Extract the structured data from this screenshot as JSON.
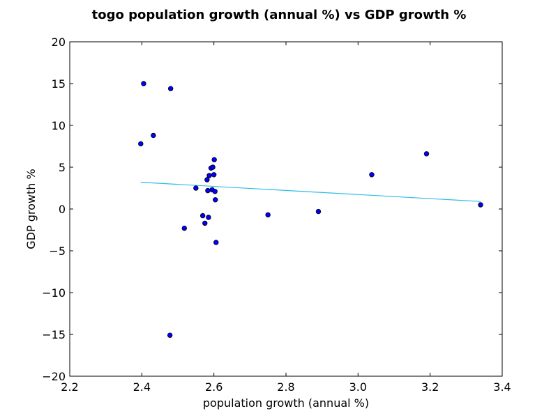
{
  "chart_data": {
    "type": "scatter",
    "title": "togo population growth (annual %) vs GDP growth %",
    "xlabel": "population growth (annual %)",
    "ylabel": "GDP growth %",
    "xlim": [
      2.2,
      3.4
    ],
    "ylim": [
      -20,
      20
    ],
    "x_ticks": [
      2.2,
      2.4,
      2.6,
      2.8,
      3.0,
      3.2,
      3.4
    ],
    "x_tick_labels": [
      "2.2",
      "2.4",
      "2.6",
      "2.8",
      "3.0",
      "3.2",
      "3.4"
    ],
    "y_ticks": [
      -20,
      -15,
      -10,
      -5,
      0,
      5,
      10,
      15,
      20
    ],
    "y_tick_labels": [
      "−20",
      "−15",
      "−10",
      "−5",
      "0",
      "5",
      "10",
      "15",
      "20"
    ],
    "grid": false,
    "point_color": "#0000ff",
    "trendline_color": "#2bbde6",
    "points": [
      {
        "x": 2.405,
        "y": 15.0
      },
      {
        "x": 2.48,
        "y": 14.4
      },
      {
        "x": 2.432,
        "y": 8.8
      },
      {
        "x": 2.397,
        "y": 7.8
      },
      {
        "x": 2.478,
        "y": -15.1
      },
      {
        "x": 2.518,
        "y": -2.3
      },
      {
        "x": 2.55,
        "y": 2.5
      },
      {
        "x": 2.569,
        "y": -0.8
      },
      {
        "x": 2.575,
        "y": -1.7
      },
      {
        "x": 2.581,
        "y": 3.5
      },
      {
        "x": 2.583,
        "y": 2.2
      },
      {
        "x": 2.585,
        "y": -1.0
      },
      {
        "x": 2.587,
        "y": 4.0
      },
      {
        "x": 2.592,
        "y": 4.9
      },
      {
        "x": 2.595,
        "y": 2.3
      },
      {
        "x": 2.597,
        "y": 5.0
      },
      {
        "x": 2.6,
        "y": 4.1
      },
      {
        "x": 2.601,
        "y": 5.9
      },
      {
        "x": 2.603,
        "y": 2.1
      },
      {
        "x": 2.604,
        "y": 1.1
      },
      {
        "x": 2.606,
        "y": -4.0
      },
      {
        "x": 2.75,
        "y": -0.7
      },
      {
        "x": 2.89,
        "y": -0.3
      },
      {
        "x": 3.038,
        "y": 4.1
      },
      {
        "x": 3.19,
        "y": 6.6
      },
      {
        "x": 3.34,
        "y": 0.5
      }
    ],
    "trendline": {
      "x": [
        2.397,
        3.34
      ],
      "y": [
        3.2,
        0.9
      ]
    }
  }
}
